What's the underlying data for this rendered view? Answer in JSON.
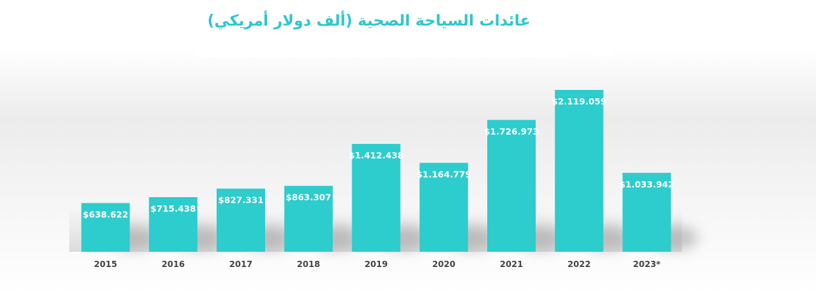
{
  "chart_data": {
    "type": "bar",
    "title": "عائدات السياحة الصحية (ألف دولار أمريكي)",
    "xlabel": "",
    "ylabel": "",
    "grid": false,
    "legend": "none",
    "ylim": [
      0,
      2200000
    ],
    "categories": [
      "2015",
      "2016",
      "2017",
      "2018",
      "2019",
      "2020",
      "2021",
      "2022",
      "2023*"
    ],
    "values": [
      638622,
      715438,
      827331,
      863307,
      1412438,
      1164779,
      1726973,
      2119059,
      1033942
    ],
    "data_labels": [
      "$638.622",
      "$715.438",
      "$827.331",
      "$863.307",
      "$1.412.438",
      "$1.164.779",
      "$1.726.973",
      "$2.119.059",
      "$1.033.942"
    ],
    "colors": {
      "bar": "#2dcccd",
      "title": "#2ec7cb",
      "tick_label": "#444444",
      "data_label": "#ffffff"
    }
  }
}
